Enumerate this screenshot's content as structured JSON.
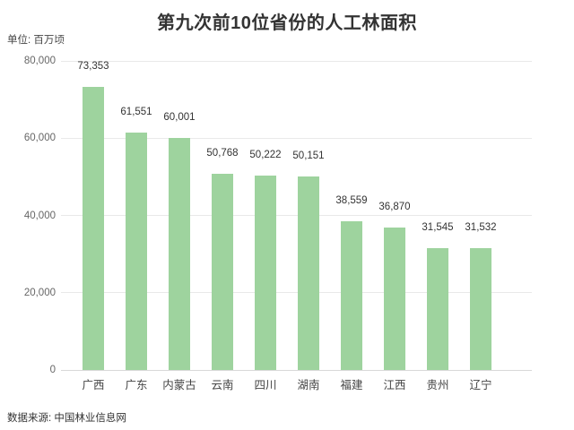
{
  "chart": {
    "title": "第九次前10位省份的人工林面积",
    "unit_label": "单位: 百万顷"
  },
  "footer": {
    "source": "数据来源: 中国林业信息网"
  },
  "chart_data": {
    "type": "bar",
    "title": "第九次前10位省份的人工林面积",
    "unit_label": "单位: 百万顷",
    "categories": [
      "广西",
      "广东",
      "内蒙古",
      "云南",
      "四川",
      "湖南",
      "福建",
      "江西",
      "贵州",
      "辽宁"
    ],
    "values": [
      73353,
      61551,
      60001,
      50768,
      50222,
      50151,
      38559,
      36870,
      31545,
      31532
    ],
    "value_labels": [
      "73,353",
      "61,551",
      "60,001",
      "50,768",
      "50,222",
      "50,151",
      "38,559",
      "36,870",
      "31,545",
      "31,532"
    ],
    "xlabel": "",
    "ylabel": "单位: 百万顷",
    "ylim": [
      0,
      80000
    ],
    "yticks": [
      0,
      20000,
      40000,
      60000,
      80000
    ],
    "ytick_labels": [
      "0",
      "20,000",
      "40,000",
      "60,000",
      "80,000"
    ],
    "grid": true,
    "legend": false,
    "bar_color": "#9ed39e",
    "source": "数据来源: 中国林业信息网"
  }
}
